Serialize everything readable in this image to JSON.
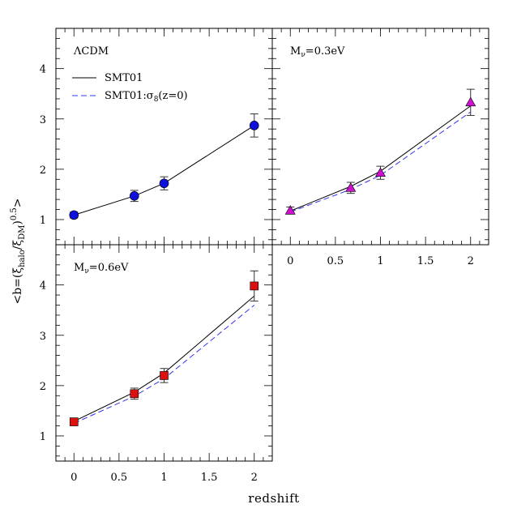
{
  "figure": {
    "xlabel": "redshift",
    "ylabel": {
      "prefix": "<b=(ξ",
      "sub1": "halo",
      "mid": "/ξ",
      "sub2": "DM",
      "close": ")",
      "sup": "0.5",
      "suffix": ">"
    }
  },
  "legend": {
    "solid_label": "SMT01",
    "dashed_prefix": "SMT01:σ",
    "dashed_sub": "8",
    "dashed_suffix": "(z=0)"
  },
  "colors": {
    "lcdm_marker": "#1010dd",
    "mnu03_marker": "#d010d0",
    "mnu06_marker": "#dd1010",
    "dashed_line": "#3333ee",
    "solid_line": "#000000"
  },
  "chart_data": [
    {
      "type": "scatter",
      "panel": "top-left",
      "label": "ΛCDM",
      "marker": "circle",
      "x": [
        0,
        0.67,
        1,
        2
      ],
      "y": [
        1.09,
        1.47,
        1.72,
        2.87
      ],
      "yerr": [
        0.06,
        0.11,
        0.13,
        0.23
      ],
      "solid_model": [
        [
          0,
          1.09
        ],
        [
          0.67,
          1.47
        ],
        [
          1,
          1.72
        ],
        [
          2,
          2.87
        ]
      ],
      "dashed_model": [],
      "xlim": [
        -0.2,
        2.2
      ],
      "ylim": [
        0.5,
        4.8
      ],
      "yticks": [
        1,
        2,
        3,
        4
      ],
      "xticks": [],
      "legend": true
    },
    {
      "type": "scatter",
      "panel": "top-right",
      "label_main": "M",
      "label_sub": "ν",
      "label_rest": "=0.3eV",
      "marker": "triangle",
      "x": [
        0,
        0.67,
        1,
        2
      ],
      "y": [
        1.18,
        1.63,
        1.93,
        3.33
      ],
      "yerr": [
        0.07,
        0.11,
        0.13,
        0.26
      ],
      "solid_model": [
        [
          0,
          1.17
        ],
        [
          0.67,
          1.66
        ],
        [
          1,
          1.96
        ],
        [
          2,
          3.26
        ]
      ],
      "dashed_model": [
        [
          0,
          1.15
        ],
        [
          0.67,
          1.6
        ],
        [
          1,
          1.88
        ],
        [
          2,
          3.14
        ]
      ],
      "xlim": [
        -0.2,
        2.2
      ],
      "ylim": [
        0.5,
        4.8
      ],
      "yticks": [],
      "xticks": [
        "0",
        "0.5",
        "1",
        "1.5",
        "2"
      ],
      "legend": false
    },
    {
      "type": "scatter",
      "panel": "bottom-left",
      "label_main": "M",
      "label_sub": "ν",
      "label_rest": "=0.6eV",
      "marker": "square",
      "x": [
        0,
        0.67,
        1,
        2
      ],
      "y": [
        1.28,
        1.84,
        2.2,
        3.98
      ],
      "yerr": [
        0.07,
        0.11,
        0.14,
        0.3
      ],
      "solid_model": [
        [
          0,
          1.29
        ],
        [
          0.67,
          1.87
        ],
        [
          1,
          2.25
        ],
        [
          2,
          3.78
        ]
      ],
      "dashed_model": [
        [
          0,
          1.25
        ],
        [
          0.67,
          1.79
        ],
        [
          1,
          2.14
        ],
        [
          2,
          3.6
        ]
      ],
      "xlim": [
        -0.2,
        2.2
      ],
      "ylim": [
        0.5,
        4.8
      ],
      "yticks": [
        1,
        2,
        3,
        4
      ],
      "xticks": [
        "0",
        "0.5",
        "1",
        "1.5",
        "2"
      ],
      "legend": false
    }
  ]
}
